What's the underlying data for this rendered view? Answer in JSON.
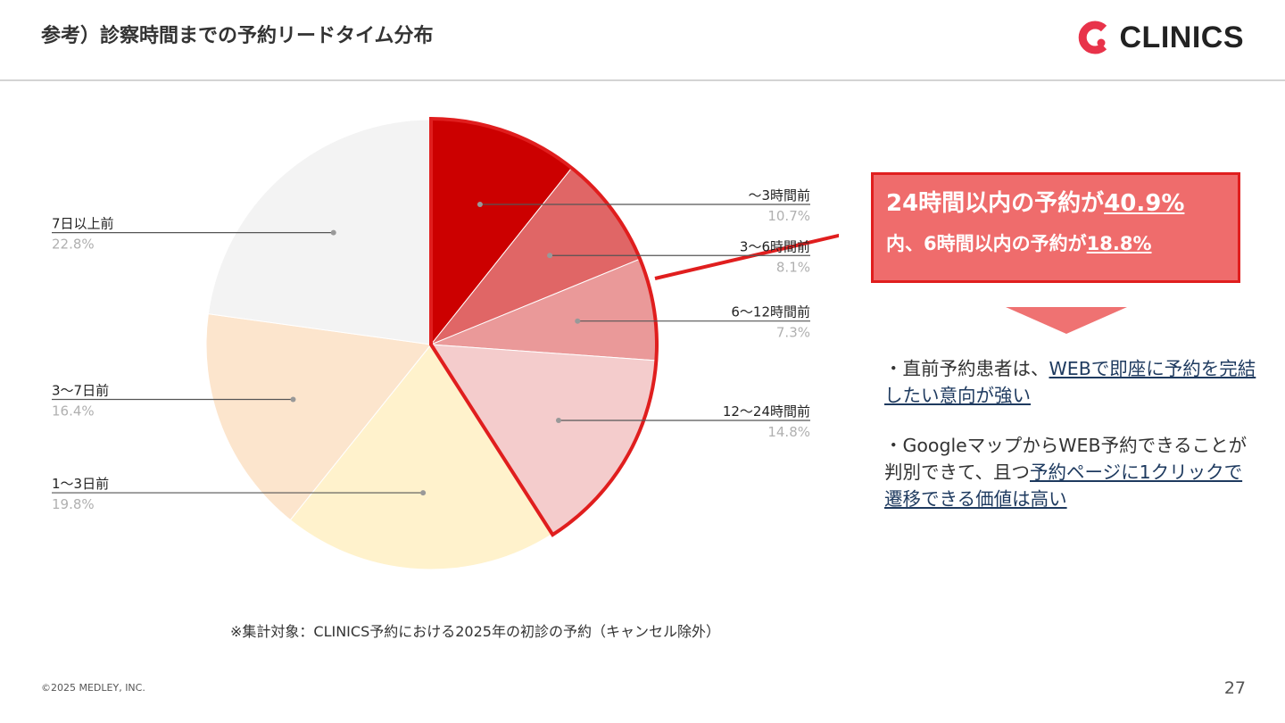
{
  "header": {
    "title": "参考）診察時間までの予約リードタイム分布",
    "logo_text": "CLINICS"
  },
  "colors": {
    "accent_red": "#cc0000",
    "callout_fill": "#ef6c6c",
    "callout_border": "#e01e1e",
    "link_text": "#1e3a5f"
  },
  "chart_data": {
    "type": "pie",
    "start": "12 o'clock, clockwise",
    "categories": [
      "〜3時間前",
      "3〜6時間前",
      "6〜12時間前",
      "12〜24時間前",
      "1〜3日前",
      "3〜7日前",
      "7日以上前"
    ],
    "values": [
      10.7,
      8.1,
      7.3,
      14.8,
      19.8,
      16.4,
      22.8
    ],
    "value_labels": [
      "10.7%",
      "8.1%",
      "7.3%",
      "14.8%",
      "19.8%",
      "16.4%",
      "22.8%"
    ],
    "slice_colors": [
      "#cc0000",
      "#e06666",
      "#ea9999",
      "#f4cccc",
      "#fff2cc",
      "#fce5cd",
      "#f3f3f3"
    ],
    "highlighted_slices": [
      "〜3時間前",
      "3〜6時間前",
      "6〜12時間前",
      "12〜24時間前"
    ],
    "highlight_outline_color": "#e01e1e",
    "legend": "leader-line labels beside slices"
  },
  "callout": {
    "line1_prefix": "24時間以内の予約が",
    "line1_value": "40.9%",
    "line2_prefix": "内、6時間以内の予約が",
    "line2_value": "18.8%"
  },
  "bullets": [
    {
      "prefix": "・直前予約患者は、",
      "underlined": "WEBで即座に予約を完結したい意向が強い"
    },
    {
      "prefix": "・Googleマップからから",
      "underlined_1_lead": "",
      "text_a": "・GoogleマップからWEB予約できることが判別できて、且つ",
      "underlined": "予約ページに1クリックで遷移できる価値は高い"
    }
  ],
  "footnote": "※集計対象：CLINICS予約における2025年の初診の予約（キャンセル除外）",
  "footer": {
    "copyright": "©2025 MEDLEY, INC.",
    "page_number": "27"
  }
}
